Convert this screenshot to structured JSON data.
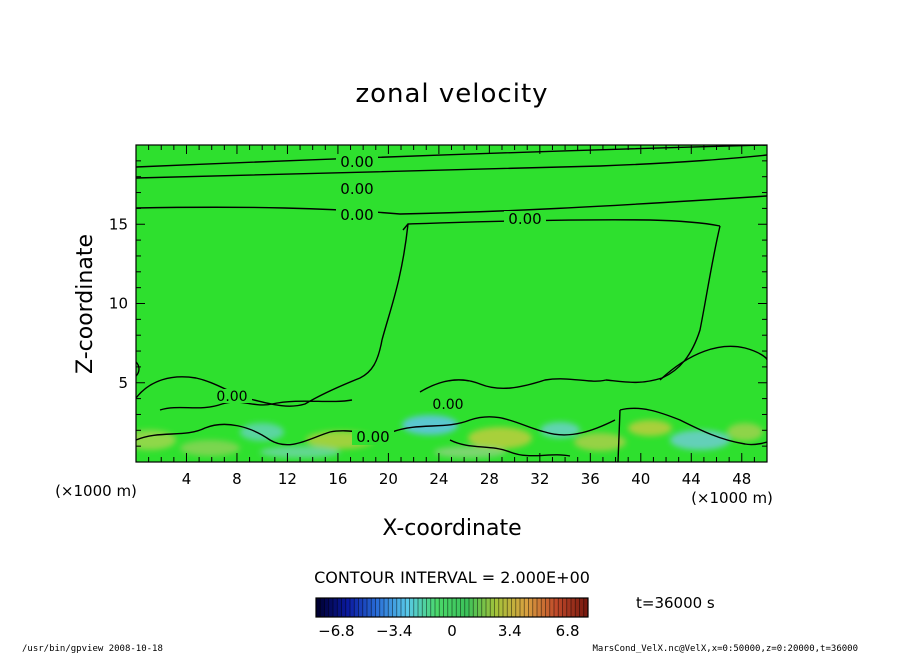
{
  "chart_data": {
    "type": "heatmap",
    "title": "zonal velocity",
    "xlabel": "X-coordinate",
    "ylabel": "Z-coordinate",
    "x_unit_label": "(×1000 m)",
    "y_unit_label": "(×1000 m)",
    "xlim": [
      0,
      50
    ],
    "ylim": [
      0,
      20
    ],
    "x_ticks": [
      4,
      8,
      12,
      16,
      20,
      24,
      28,
      32,
      36,
      40,
      44,
      48
    ],
    "y_ticks": [
      5,
      10,
      15
    ],
    "contour_interval_text": "CONTOUR INTERVAL = 2.000E+00",
    "contour_label": "0.00",
    "time_label": "t=36000 s",
    "colorbar": {
      "range": [
        -8,
        8
      ],
      "tick_values": [
        -6.8,
        -3.4,
        0,
        3.4,
        6.8
      ],
      "tick_labels": [
        "−6.8",
        "−3.4",
        "0",
        "3.4",
        "6.8"
      ],
      "colors": [
        "#000033",
        "#0a1aa0",
        "#2a6fd8",
        "#58c8e8",
        "#4ad86a",
        "#3cc25a",
        "#a6c23a",
        "#d8a040",
        "#c04a2a",
        "#7a1a10"
      ]
    },
    "field_color": "#2ee02e",
    "footer_left": "/usr/bin/gpview   2008-10-18",
    "footer_right": "MarsCond_VelX.nc@VelX,x=0:50000,z=0:20000,t=36000"
  }
}
